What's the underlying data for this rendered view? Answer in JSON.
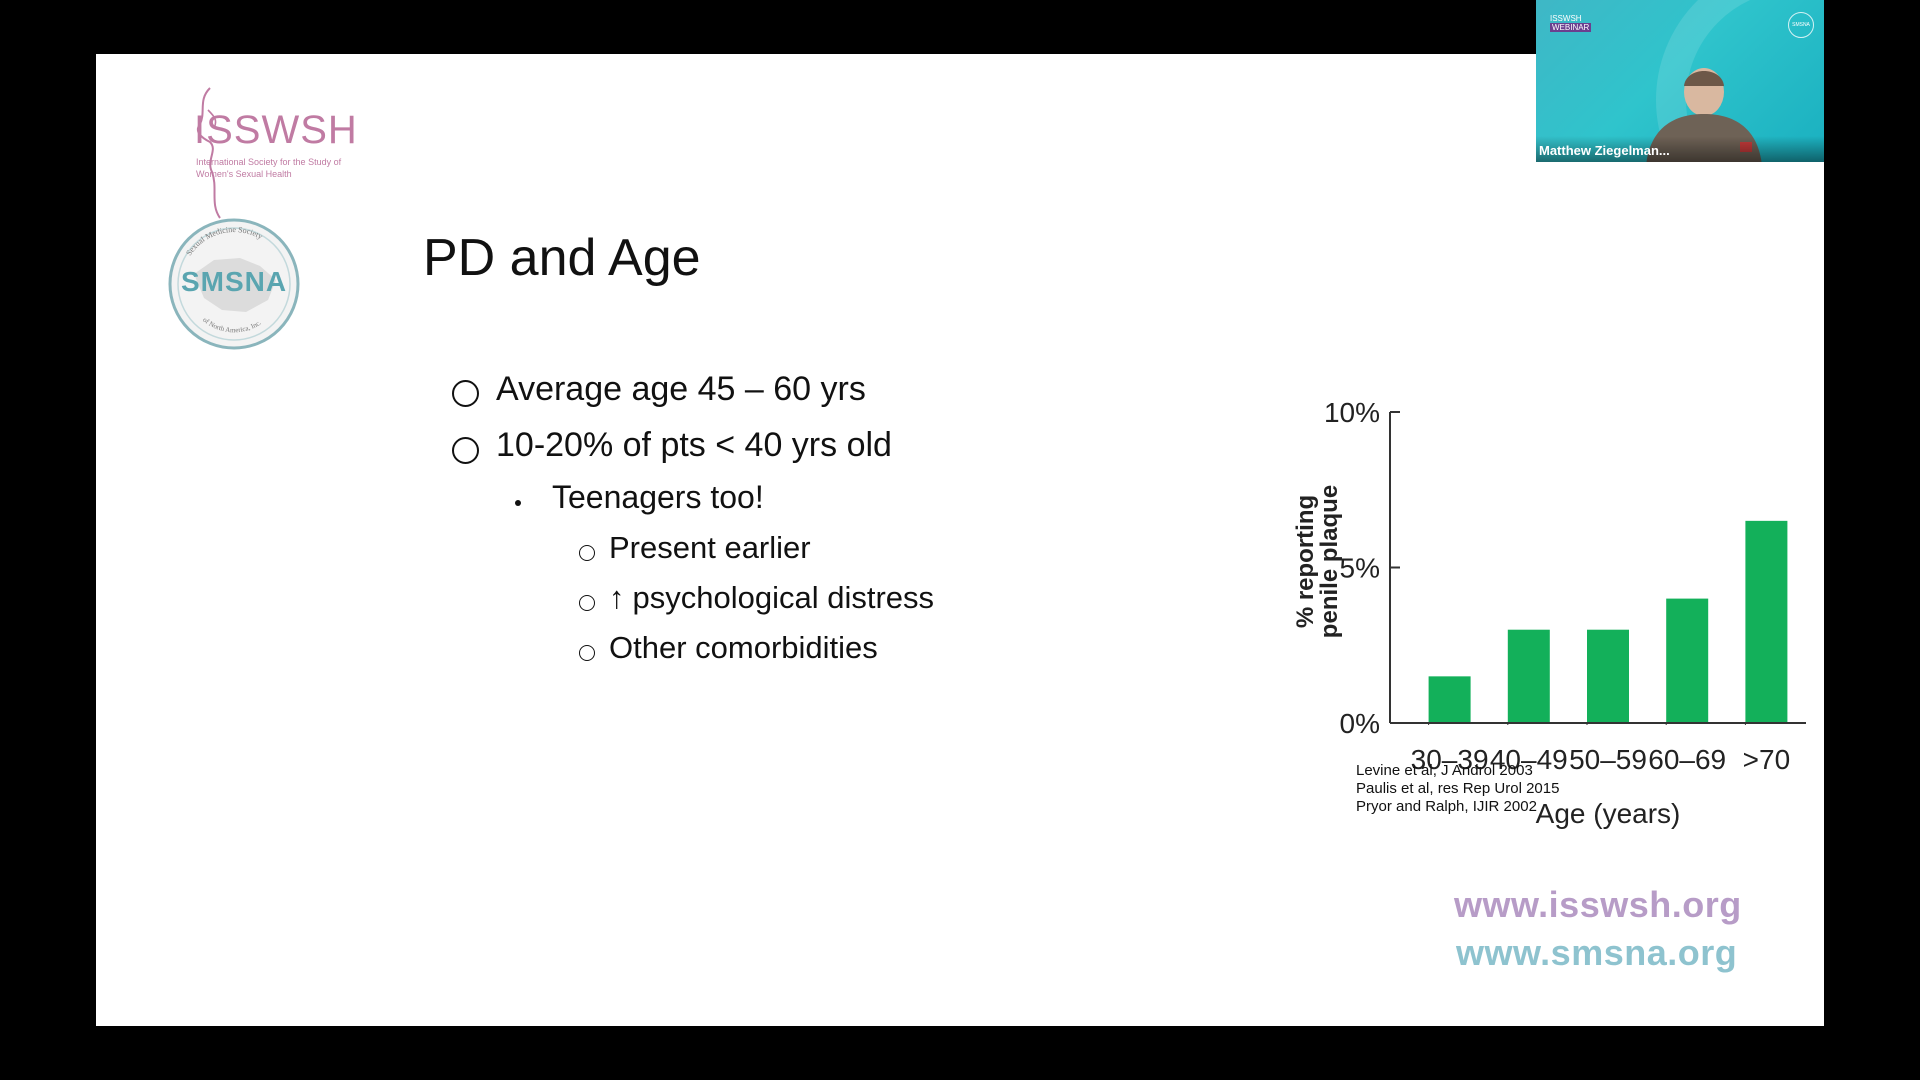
{
  "slide": {
    "logos": {
      "isswsh_name": "ISSWSH",
      "isswsh_tagline": "International Society for the Study of Women's Sexual Health",
      "smsna_name": "SMSNA",
      "smsna_ring_top": "Sexual Medicine Society",
      "smsna_ring_bottom": "of North America, Inc."
    },
    "title": "PD and Age",
    "bullets": [
      {
        "level": 1,
        "text": "Average age 45 – 60 yrs"
      },
      {
        "level": 1,
        "text": "10-20% of pts < 40 yrs old"
      },
      {
        "level": 2,
        "text": "Teenagers too!"
      },
      {
        "level": 3,
        "text": "Present earlier"
      },
      {
        "level": 3,
        "text": "psychological distress",
        "icon": "arrow-up-icon"
      },
      {
        "level": 3,
        "text": "Other comorbidities"
      }
    ],
    "arrow_glyph": "↑",
    "references": [
      "Levine et al, J Androl 2003",
      "Paulis et al, res Rep Urol 2015",
      "Pryor and Ralph, IJIR 2002"
    ],
    "urls": [
      "www.isswsh.org",
      "www.smsna.org"
    ]
  },
  "chart_data": {
    "type": "bar",
    "categories": [
      "30–39",
      "40–49",
      "50–59",
      "60–69",
      ">70"
    ],
    "values": [
      1.5,
      3.0,
      3.0,
      4.0,
      6.5
    ],
    "ylabel": "% reporting penile plaque",
    "xlabel": "Age (years)",
    "ylim": [
      0,
      10
    ],
    "yticks": [
      "0%",
      "5%",
      "10%"
    ],
    "bar_color": "#13b05a",
    "grid": false
  },
  "webcam": {
    "participant_name": "Matthew Ziegelman...",
    "badge_top": "ISSWSH",
    "badge_tag": "WEBINAR",
    "corner_logo": "SMSNA"
  }
}
